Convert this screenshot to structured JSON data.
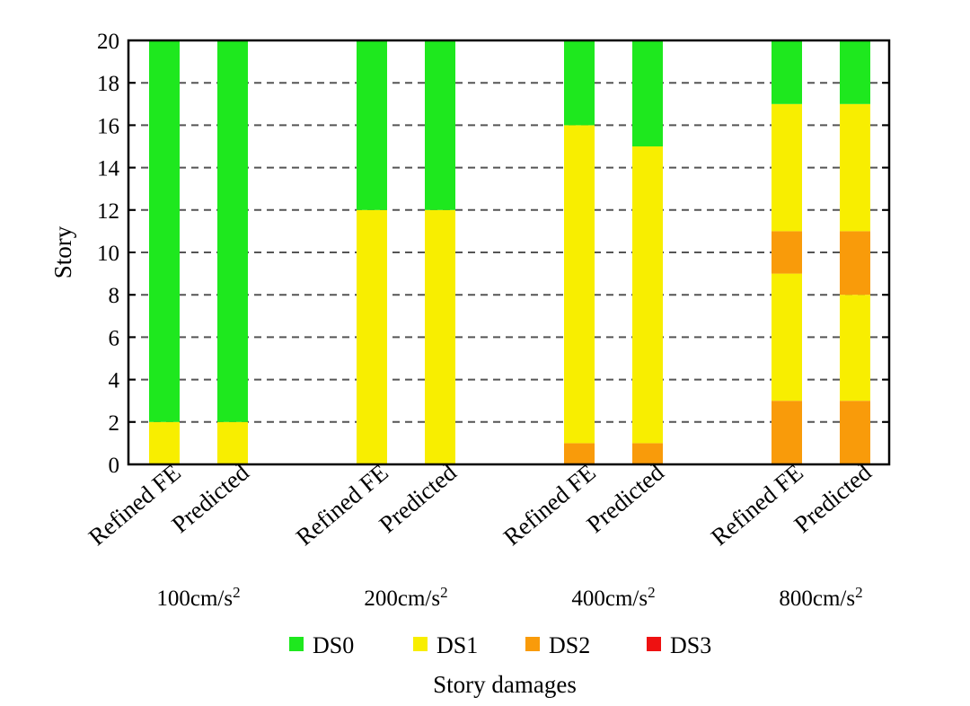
{
  "chart_data": {
    "type": "bar",
    "stacked": true,
    "title": "",
    "ylabel": "Story",
    "xlabel": "Story damages",
    "ylim": [
      0,
      20
    ],
    "yticks": [
      0,
      2,
      4,
      6,
      8,
      10,
      12,
      14,
      16,
      18,
      20
    ],
    "grid": "horizontal-dashed",
    "legend_position": "bottom",
    "categories": [
      "Refined FE",
      "Predicted",
      "Refined FE",
      "Predicted",
      "Refined FE",
      "Predicted",
      "Refined FE",
      "Predicted"
    ],
    "groups": [
      {
        "label": "100cm/s",
        "superscript": "2",
        "bars": [
          {
            "label": "Refined FE",
            "segments": [
              {
                "state": "DS1",
                "from": 0,
                "to": 2
              },
              {
                "state": "DS0",
                "from": 2,
                "to": 20
              }
            ]
          },
          {
            "label": "Predicted",
            "segments": [
              {
                "state": "DS1",
                "from": 0,
                "to": 2
              },
              {
                "state": "DS0",
                "from": 2,
                "to": 20
              }
            ]
          }
        ]
      },
      {
        "label": "200cm/s",
        "superscript": "2",
        "bars": [
          {
            "label": "Refined FE",
            "segments": [
              {
                "state": "DS1",
                "from": 0,
                "to": 12
              },
              {
                "state": "DS0",
                "from": 12,
                "to": 20
              }
            ]
          },
          {
            "label": "Predicted",
            "segments": [
              {
                "state": "DS1",
                "from": 0,
                "to": 12
              },
              {
                "state": "DS0",
                "from": 12,
                "to": 20
              }
            ]
          }
        ]
      },
      {
        "label": "400cm/s",
        "superscript": "2",
        "bars": [
          {
            "label": "Refined FE",
            "segments": [
              {
                "state": "DS2",
                "from": 0,
                "to": 1
              },
              {
                "state": "DS1",
                "from": 1,
                "to": 16
              },
              {
                "state": "DS0",
                "from": 16,
                "to": 20
              }
            ]
          },
          {
            "label": "Predicted",
            "segments": [
              {
                "state": "DS2",
                "from": 0,
                "to": 1
              },
              {
                "state": "DS1",
                "from": 1,
                "to": 15
              },
              {
                "state": "DS0",
                "from": 15,
                "to": 20
              }
            ]
          }
        ]
      },
      {
        "label": "800cm/s",
        "superscript": "2",
        "bars": [
          {
            "label": "Refined FE",
            "segments": [
              {
                "state": "DS2",
                "from": 0,
                "to": 3
              },
              {
                "state": "DS1",
                "from": 3,
                "to": 9
              },
              {
                "state": "DS2",
                "from": 9,
                "to": 11
              },
              {
                "state": "DS1",
                "from": 11,
                "to": 17
              },
              {
                "state": "DS0",
                "from": 17,
                "to": 20
              }
            ]
          },
          {
            "label": "Predicted",
            "segments": [
              {
                "state": "DS2",
                "from": 0,
                "to": 3
              },
              {
                "state": "DS1",
                "from": 3,
                "to": 8
              },
              {
                "state": "DS2",
                "from": 8,
                "to": 11
              },
              {
                "state": "DS1",
                "from": 11,
                "to": 17
              },
              {
                "state": "DS0",
                "from": 17,
                "to": 20
              }
            ]
          }
        ]
      }
    ],
    "legend": [
      {
        "name": "DS0",
        "color": "#1ee81e"
      },
      {
        "name": "DS1",
        "color": "#f8ee00"
      },
      {
        "name": "DS2",
        "color": "#f99b0a"
      },
      {
        "name": "DS3",
        "color": "#ee1111"
      }
    ]
  }
}
